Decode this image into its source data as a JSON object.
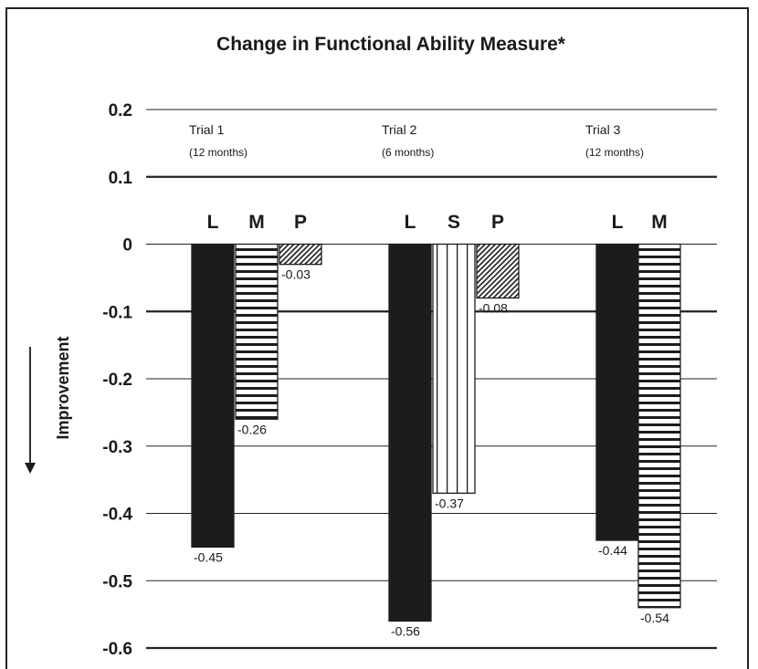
{
  "chart_data": {
    "type": "bar",
    "title": "Change in Functional Ability Measure*",
    "ylabel": "Improvement",
    "ylim": [
      -0.6,
      0.2
    ],
    "yticks": [
      0.2,
      0.1,
      0,
      -0.1,
      -0.2,
      -0.3,
      -0.4,
      -0.5,
      -0.6
    ],
    "ytick_labels": [
      "0.2",
      "0.1",
      "0",
      "-0.1",
      "-0.2",
      "-0.3",
      "-0.4",
      "-0.5",
      "-0.6"
    ],
    "grid": true,
    "groups": [
      {
        "name": "Trial 1",
        "duration": "(12 months)",
        "bars": [
          {
            "letter": "L",
            "value": -0.45,
            "label": "-0.45",
            "pattern": "solid"
          },
          {
            "letter": "M",
            "value": -0.26,
            "label": "-0.26",
            "pattern": "horizontal"
          },
          {
            "letter": "P",
            "value": -0.03,
            "label": "-0.03",
            "pattern": "diagonal"
          }
        ]
      },
      {
        "name": "Trial 2",
        "duration": "(6 months)",
        "bars": [
          {
            "letter": "L",
            "value": -0.56,
            "label": "-0.56",
            "pattern": "solid"
          },
          {
            "letter": "S",
            "value": -0.37,
            "label": "-0.37",
            "pattern": "vertical"
          },
          {
            "letter": "P",
            "value": -0.08,
            "label": "-0.08",
            "pattern": "diagonal"
          }
        ]
      },
      {
        "name": "Trial 3",
        "duration": "(12 months)",
        "bars": [
          {
            "letter": "L",
            "value": -0.44,
            "label": "-0.44",
            "pattern": "solid"
          },
          {
            "letter": "M",
            "value": -0.54,
            "label": "-0.54",
            "pattern": "horizontal"
          }
        ]
      }
    ]
  },
  "colors": {
    "bar_solid": "#1c1c1c",
    "pattern_line": "#1c1c1c",
    "grid": "#222222",
    "text": "#1a1a1a"
  },
  "icons": {
    "improvement_arrow": "down-arrow-icon"
  }
}
